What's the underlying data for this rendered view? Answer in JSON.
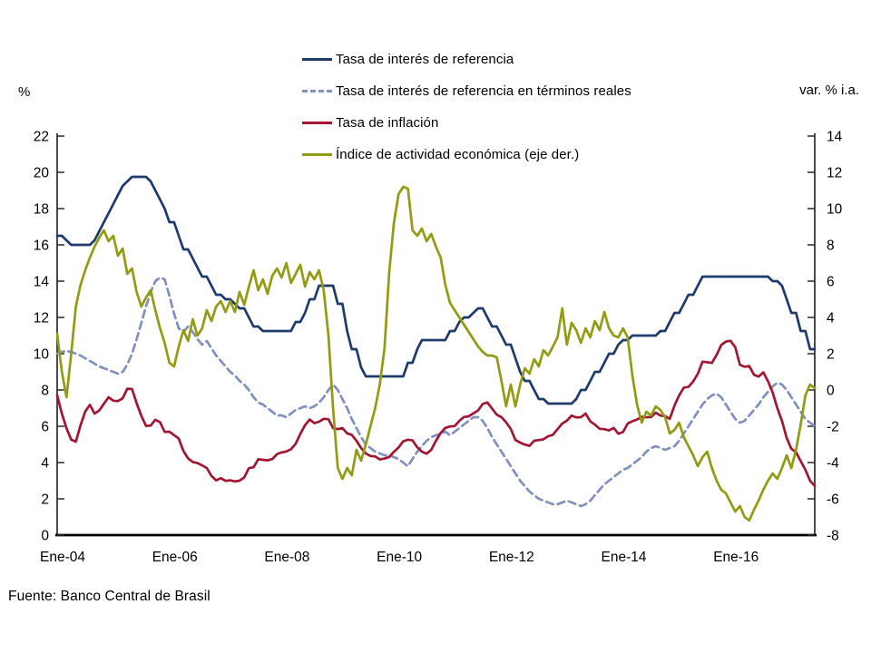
{
  "page": {
    "source_note": "Fuente: Banco Central de Brasil"
  },
  "chart_data": {
    "type": "line",
    "title": "",
    "grid": false,
    "legend_position": "top-center",
    "x_axis": {
      "start_month": "2004-01",
      "end_month": "2017-07",
      "points": 163,
      "tick_labels": [
        "Ene-04",
        "Ene-06",
        "Ene-08",
        "Ene-10",
        "Ene-12",
        "Ene-14",
        "Ene-16"
      ],
      "tick_month_indices": [
        0,
        24,
        48,
        72,
        96,
        120,
        144
      ]
    },
    "left_axis": {
      "label": "%",
      "min": 0,
      "max": 22,
      "step": 2,
      "ticks": [
        0,
        2,
        4,
        6,
        8,
        10,
        12,
        14,
        16,
        18,
        20,
        22
      ]
    },
    "right_axis": {
      "label": "var. % i.a.",
      "min": -8,
      "max": 14,
      "step": 2,
      "ticks": [
        -8,
        -6,
        -4,
        -2,
        0,
        2,
        4,
        6,
        8,
        10,
        12,
        14
      ]
    },
    "series": [
      {
        "name": "Tasa de interés de referencia",
        "slug": "policy-rate-line",
        "axis": "left",
        "color": "#1F3B6C",
        "style": "solid",
        "values": [
          16.5,
          16.5,
          16.25,
          16,
          16,
          16,
          16,
          16,
          16.25,
          16.75,
          17.25,
          17.75,
          18.25,
          18.75,
          19.25,
          19.5,
          19.75,
          19.75,
          19.75,
          19.75,
          19.5,
          19,
          18.5,
          18,
          17.25,
          17.25,
          16.5,
          15.75,
          15.75,
          15.25,
          14.75,
          14.25,
          14.25,
          13.75,
          13.25,
          13.25,
          13,
          13,
          12.75,
          12.5,
          12.5,
          12,
          11.5,
          11.5,
          11.25,
          11.25,
          11.25,
          11.25,
          11.25,
          11.25,
          11.25,
          11.75,
          11.75,
          12.25,
          13,
          13,
          13.75,
          13.75,
          13.75,
          13.75,
          12.75,
          12.75,
          11.25,
          10.25,
          10.25,
          9.25,
          8.75,
          8.75,
          8.75,
          8.75,
          8.75,
          8.75,
          8.75,
          8.75,
          8.75,
          9.5,
          9.5,
          10.25,
          10.75,
          10.75,
          10.75,
          10.75,
          10.75,
          10.75,
          11.25,
          11.25,
          11.75,
          12,
          12,
          12.25,
          12.5,
          12.5,
          12,
          11.5,
          11.5,
          11,
          10.5,
          10.5,
          9.75,
          9,
          8.5,
          8.5,
          8,
          7.5,
          7.5,
          7.25,
          7.25,
          7.25,
          7.25,
          7.25,
          7.25,
          7.5,
          8,
          8,
          8.5,
          9,
          9,
          9.5,
          10,
          10,
          10.5,
          10.75,
          10.75,
          11,
          11,
          11,
          11,
          11,
          11,
          11.25,
          11.25,
          11.75,
          12.25,
          12.25,
          12.75,
          13.25,
          13.25,
          13.75,
          14.25,
          14.25,
          14.25,
          14.25,
          14.25,
          14.25,
          14.25,
          14.25,
          14.25,
          14.25,
          14.25,
          14.25,
          14.25,
          14.25,
          14.25,
          14,
          14,
          13.75,
          13,
          12.25,
          12.25,
          11.25,
          11.25,
          10.25,
          10.25
        ]
      },
      {
        "name": "Tasa de interés de referencia en términos reales",
        "slug": "real-policy-rate-line",
        "axis": "left",
        "color": "#8191BE",
        "style": "dashed",
        "values": [
          10,
          10.1,
          10.15,
          10.1,
          10,
          9.9,
          9.75,
          9.6,
          9.45,
          9.3,
          9.2,
          9.1,
          9,
          8.9,
          9,
          9.4,
          10,
          10.8,
          11.7,
          12.6,
          13.4,
          14,
          14.2,
          14.1,
          13.2,
          12.2,
          11.4,
          11.2,
          11.5,
          11.2,
          10.8,
          10.5,
          10.7,
          10.3,
          9.9,
          9.6,
          9.3,
          9,
          8.8,
          8.5,
          8.3,
          8,
          7.6,
          7.3,
          7.2,
          7,
          6.8,
          6.6,
          6.6,
          6.5,
          6.7,
          6.9,
          7,
          7.1,
          7,
          7.1,
          7.3,
          7.6,
          8,
          8.3,
          8,
          7.5,
          7,
          6.4,
          5.9,
          5.4,
          5,
          4.8,
          4.6,
          4.5,
          4.4,
          4.4,
          4.3,
          4.2,
          4,
          3.8,
          4.2,
          4.6,
          4.9,
          5.2,
          5.4,
          5.5,
          5.6,
          5.7,
          5.5,
          5.7,
          5.9,
          6.1,
          6.3,
          6.5,
          6.5,
          6.3,
          5.9,
          5.4,
          5,
          4.6,
          4.2,
          3.8,
          3.4,
          3,
          2.7,
          2.4,
          2.2,
          2,
          1.9,
          1.8,
          1.7,
          1.7,
          1.8,
          1.9,
          1.8,
          1.7,
          1.6,
          1.7,
          1.9,
          2.2,
          2.5,
          2.8,
          3,
          3.2,
          3.4,
          3.6,
          3.7,
          3.9,
          4.1,
          4.3,
          4.6,
          4.8,
          4.9,
          4.8,
          4.7,
          4.8,
          4.9,
          5.2,
          5.6,
          6,
          6.4,
          6.8,
          7.2,
          7.5,
          7.7,
          7.8,
          7.6,
          7.2,
          6.8,
          6.4,
          6.2,
          6.3,
          6.6,
          6.9,
          7.2,
          7.6,
          7.9,
          8.2,
          8.4,
          8.3,
          8,
          7.6,
          7.2,
          6.8,
          6.4,
          6.2,
          6
        ]
      },
      {
        "name": "Tasa de inflación",
        "slug": "inflation-line",
        "axis": "left",
        "color": "#A11631",
        "style": "solid",
        "values": [
          7.71,
          6.69,
          5.89,
          5.26,
          5.15,
          6.06,
          6.81,
          7.18,
          6.7,
          6.87,
          7.24,
          7.6,
          7.41,
          7.39,
          7.54,
          8.07,
          8.05,
          7.27,
          6.57,
          6.02,
          6.04,
          6.36,
          6.22,
          5.69,
          5.7,
          5.51,
          5.32,
          4.63,
          4.23,
          4.03,
          3.97,
          3.84,
          3.7,
          3.26,
          3.02,
          3.14,
          2.99,
          3.02,
          2.96,
          3,
          3.18,
          3.69,
          3.74,
          4.18,
          4.15,
          4.12,
          4.19,
          4.46,
          4.56,
          4.61,
          4.73,
          5.04,
          5.58,
          6.06,
          6.37,
          6.17,
          6.25,
          6.41,
          6.39,
          5.9,
          5.84,
          5.9,
          5.61,
          5.53,
          5.2,
          4.8,
          4.5,
          4.36,
          4.34,
          4.17,
          4.22,
          4.31,
          4.59,
          4.83,
          5.17,
          5.26,
          5.22,
          4.84,
          4.6,
          4.49,
          4.7,
          5.2,
          5.63,
          5.91,
          5.99,
          6.01,
          6.3,
          6.51,
          6.55,
          6.71,
          6.87,
          7.23,
          7.31,
          6.97,
          6.64,
          6.5,
          6.22,
          5.85,
          5.24,
          5.1,
          4.99,
          4.92,
          5.2,
          5.24,
          5.28,
          5.45,
          5.53,
          5.84,
          6.15,
          6.31,
          6.59,
          6.49,
          6.5,
          6.7,
          6.27,
          6.09,
          5.86,
          5.84,
          5.77,
          5.91,
          5.59,
          5.68,
          6.15,
          6.28,
          6.37,
          6.52,
          6.5,
          6.51,
          6.75,
          6.59,
          6.56,
          6.41,
          7.14,
          7.7,
          8.13,
          8.17,
          8.47,
          8.89,
          9.56,
          9.53,
          9.49,
          9.93,
          10.48,
          10.67,
          10.71,
          10.36,
          9.39,
          9.28,
          9.32,
          8.84,
          8.74,
          8.97,
          8.48,
          7.87,
          6.99,
          6.29,
          5.35,
          4.76,
          4.57,
          4.08,
          3.6,
          3,
          2.71
        ]
      },
      {
        "name": "Índice de actividad económica (eje der.)",
        "slug": "economic-activity-line",
        "axis": "right",
        "color": "#939B13",
        "style": "solid",
        "values": [
          3.1,
          1,
          -0.4,
          2,
          4.6,
          5.8,
          6.6,
          7.3,
          7.9,
          8.4,
          8.8,
          8.2,
          8.5,
          7.4,
          7.8,
          6.4,
          6.7,
          5.4,
          4.6,
          5.1,
          5.5,
          4.4,
          3.4,
          2.6,
          1.5,
          1.3,
          2.4,
          3.3,
          2.7,
          3.9,
          3,
          3.4,
          4.4,
          3.8,
          4.6,
          4.9,
          4.3,
          4.9,
          4.3,
          5.4,
          4.7,
          5.7,
          6.6,
          5.5,
          6.1,
          5.3,
          6.3,
          6.7,
          6.2,
          7,
          5.9,
          6.4,
          6.9,
          5.7,
          6.5,
          6.1,
          6.6,
          5.5,
          3,
          -1,
          -4.3,
          -4.9,
          -4.3,
          -4.7,
          -3.3,
          -3.9,
          -3,
          -2,
          -1,
          0.3,
          2.3,
          6.5,
          9.2,
          10.8,
          11.2,
          11.1,
          8.8,
          8.5,
          8.9,
          8.2,
          8.6,
          7.9,
          7.3,
          5.8,
          4.8,
          4.4,
          4,
          3.6,
          3.2,
          2.8,
          2.4,
          2.1,
          1.9,
          1.9,
          1.8,
          0.5,
          -0.9,
          0.3,
          -0.9,
          0.3,
          1.2,
          0.9,
          1.7,
          1.3,
          2.2,
          1.9,
          2.4,
          2.9,
          4.5,
          2.5,
          3.7,
          3.3,
          2.6,
          3.4,
          2.9,
          3.8,
          3.3,
          4.3,
          3.4,
          3,
          2.9,
          3.4,
          2.9,
          0.8,
          -0.8,
          -1.8,
          -1.2,
          -1.4,
          -0.9,
          -1.1,
          -1.5,
          -2.4,
          -2.2,
          -1.8,
          -2.6,
          -3.1,
          -3.6,
          -4.2,
          -3.7,
          -3.4,
          -4.3,
          -5,
          -5.5,
          -5.7,
          -6.2,
          -6.7,
          -6.4,
          -7,
          -7.2,
          -6.6,
          -6.1,
          -5.5,
          -5,
          -4.6,
          -4.9,
          -4.3,
          -3.6,
          -4.3,
          -3.3,
          -1.9,
          -0.3,
          0.3,
          0.1
        ]
      }
    ]
  }
}
